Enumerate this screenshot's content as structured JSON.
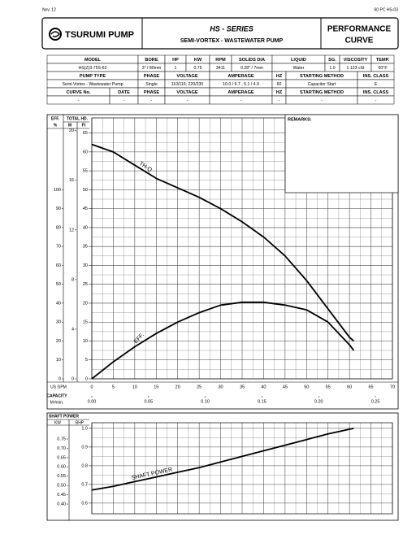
{
  "header": {
    "date": "Nov. 12",
    "code": "60 PC HS-03",
    "brand": "TSURUMI PUMP",
    "series": "HS - SERIES",
    "subtitle": "SEMI-VORTEX - WASTEWATER PUMP",
    "doc_title": [
      "PERFORMANCE",
      "CURVE"
    ]
  },
  "specs": {
    "rows": [
      [
        "MODEL",
        "BORE",
        "HP",
        "KW",
        "RPM",
        "SOLIDS DIA",
        "LIQUID",
        "SG.",
        "VISCOSITY",
        "TEMP."
      ],
      [
        "HS(Z)3.75S-62",
        "3\" / 80mm",
        "1",
        "0.75",
        "3411",
        "0.28\" / 7mm",
        "Water",
        "1.0",
        "1.123 cSt",
        "60°F"
      ],
      [
        "PUMP TYPE",
        "PHASE",
        "VOLTAGE",
        "AMPERAGE",
        "HZ",
        "STARTING METHOD",
        "INS. CLASS"
      ],
      [
        "Semi-Vortex - Wastewater Pump",
        "Single",
        "110/115; 220/230",
        "10.0 / 9.7 , 5.1 / 4.9",
        "60",
        "Capacitor Start",
        "E"
      ],
      [
        "CURVE No.",
        "DATE",
        "PHASE",
        "VOLTAGE",
        "AMPERAGE",
        "HZ",
        "STARTING METHOD",
        "INS. CLASS"
      ],
      [
        "-",
        "-",
        "-",
        "-",
        "-",
        "-",
        "-",
        "-"
      ]
    ]
  },
  "remarks_label": "REMARKS:",
  "chart_data": [
    {
      "type": "line",
      "eff_label": "EFF.",
      "eff_unit": "%",
      "head_label": "TOTAL HD.",
      "m_unit": "M",
      "ft_unit": "Ft",
      "x_label": "US GPM",
      "x2_label": [
        "CAPACITY",
        "M³/min."
      ],
      "x": [
        0,
        5,
        10,
        15,
        20,
        25,
        30,
        35,
        40,
        45,
        50,
        55,
        60,
        61
      ],
      "xlim": [
        0,
        70
      ],
      "xticks": [
        0,
        5,
        10,
        15,
        20,
        25,
        30,
        35,
        40,
        45,
        50,
        55,
        60,
        65,
        70
      ],
      "x2lim": [
        0,
        0.265
      ],
      "x2ticks": [
        {
          "value": 0,
          "label": "0.00"
        },
        0.05,
        {
          "value": 0.1,
          "label": "0.10"
        },
        0.15,
        {
          "value": 0.2,
          "label": "0.20"
        },
        0.25
      ],
      "ylim": [
        0,
        69
      ],
      "yticks": [
        0,
        5,
        10,
        15,
        20,
        25,
        30,
        35,
        40,
        45,
        50,
        55,
        60,
        65
      ],
      "y2lim": [
        0,
        21.03
      ],
      "y2ticks": [
        0,
        4,
        8,
        12,
        16,
        20
      ],
      "y3lim": [
        0,
        138
      ],
      "y3ticks": [
        0,
        10,
        20,
        30,
        40,
        50,
        60,
        70,
        80,
        90,
        100
      ],
      "grid": true,
      "series": [
        {
          "name": "TH-Q",
          "color": "#000000",
          "axis": "y",
          "values": [
            62,
            60,
            56.5,
            53,
            50.5,
            48,
            45,
            41.5,
            37.5,
            32.5,
            26,
            18.5,
            11,
            10
          ]
        },
        {
          "name": "EFF.",
          "color": "#000000",
          "axis": "y3",
          "values": [
            0,
            9,
            17,
            24,
            30,
            35,
            39,
            40.5,
            40.5,
            39,
            36.5,
            30,
            18,
            15
          ]
        }
      ]
    },
    {
      "type": "line",
      "title": "SHAFT POWER",
      "y2_unit": "KW",
      "y_unit": "BHP",
      "x": [
        0,
        5,
        10,
        15,
        20,
        25,
        30,
        35,
        40,
        45,
        50,
        55,
        60,
        61
      ],
      "xlim": [
        0,
        70
      ],
      "xticks": [
        0,
        5,
        10,
        15,
        20,
        25,
        30,
        35,
        40,
        45,
        50,
        55,
        60,
        65,
        70
      ],
      "ylim": [
        0.543,
        1.03
      ],
      "yticks": [
        0.6,
        0.7,
        0.8,
        0.9,
        {
          "value": 1,
          "label": "1.0"
        }
      ],
      "y2lim": [
        0.3475,
        0.8375
      ],
      "y2ticks": [
        {
          "value": 0.4,
          "label": "0.40"
        },
        0.45,
        {
          "value": 0.5,
          "label": "0.50"
        },
        0.55,
        {
          "value": 0.6,
          "label": "0.60"
        },
        0.65,
        {
          "value": 0.7,
          "label": "0.70"
        },
        0.75
      ],
      "grid": true,
      "series": [
        {
          "name": "SHAFT POWER",
          "color": "#000000",
          "axis": "y",
          "values": [
            0.67,
            0.69,
            0.715,
            0.74,
            0.765,
            0.79,
            0.82,
            0.85,
            0.88,
            0.91,
            0.94,
            0.97,
            0.995,
            1.0
          ]
        }
      ]
    }
  ]
}
